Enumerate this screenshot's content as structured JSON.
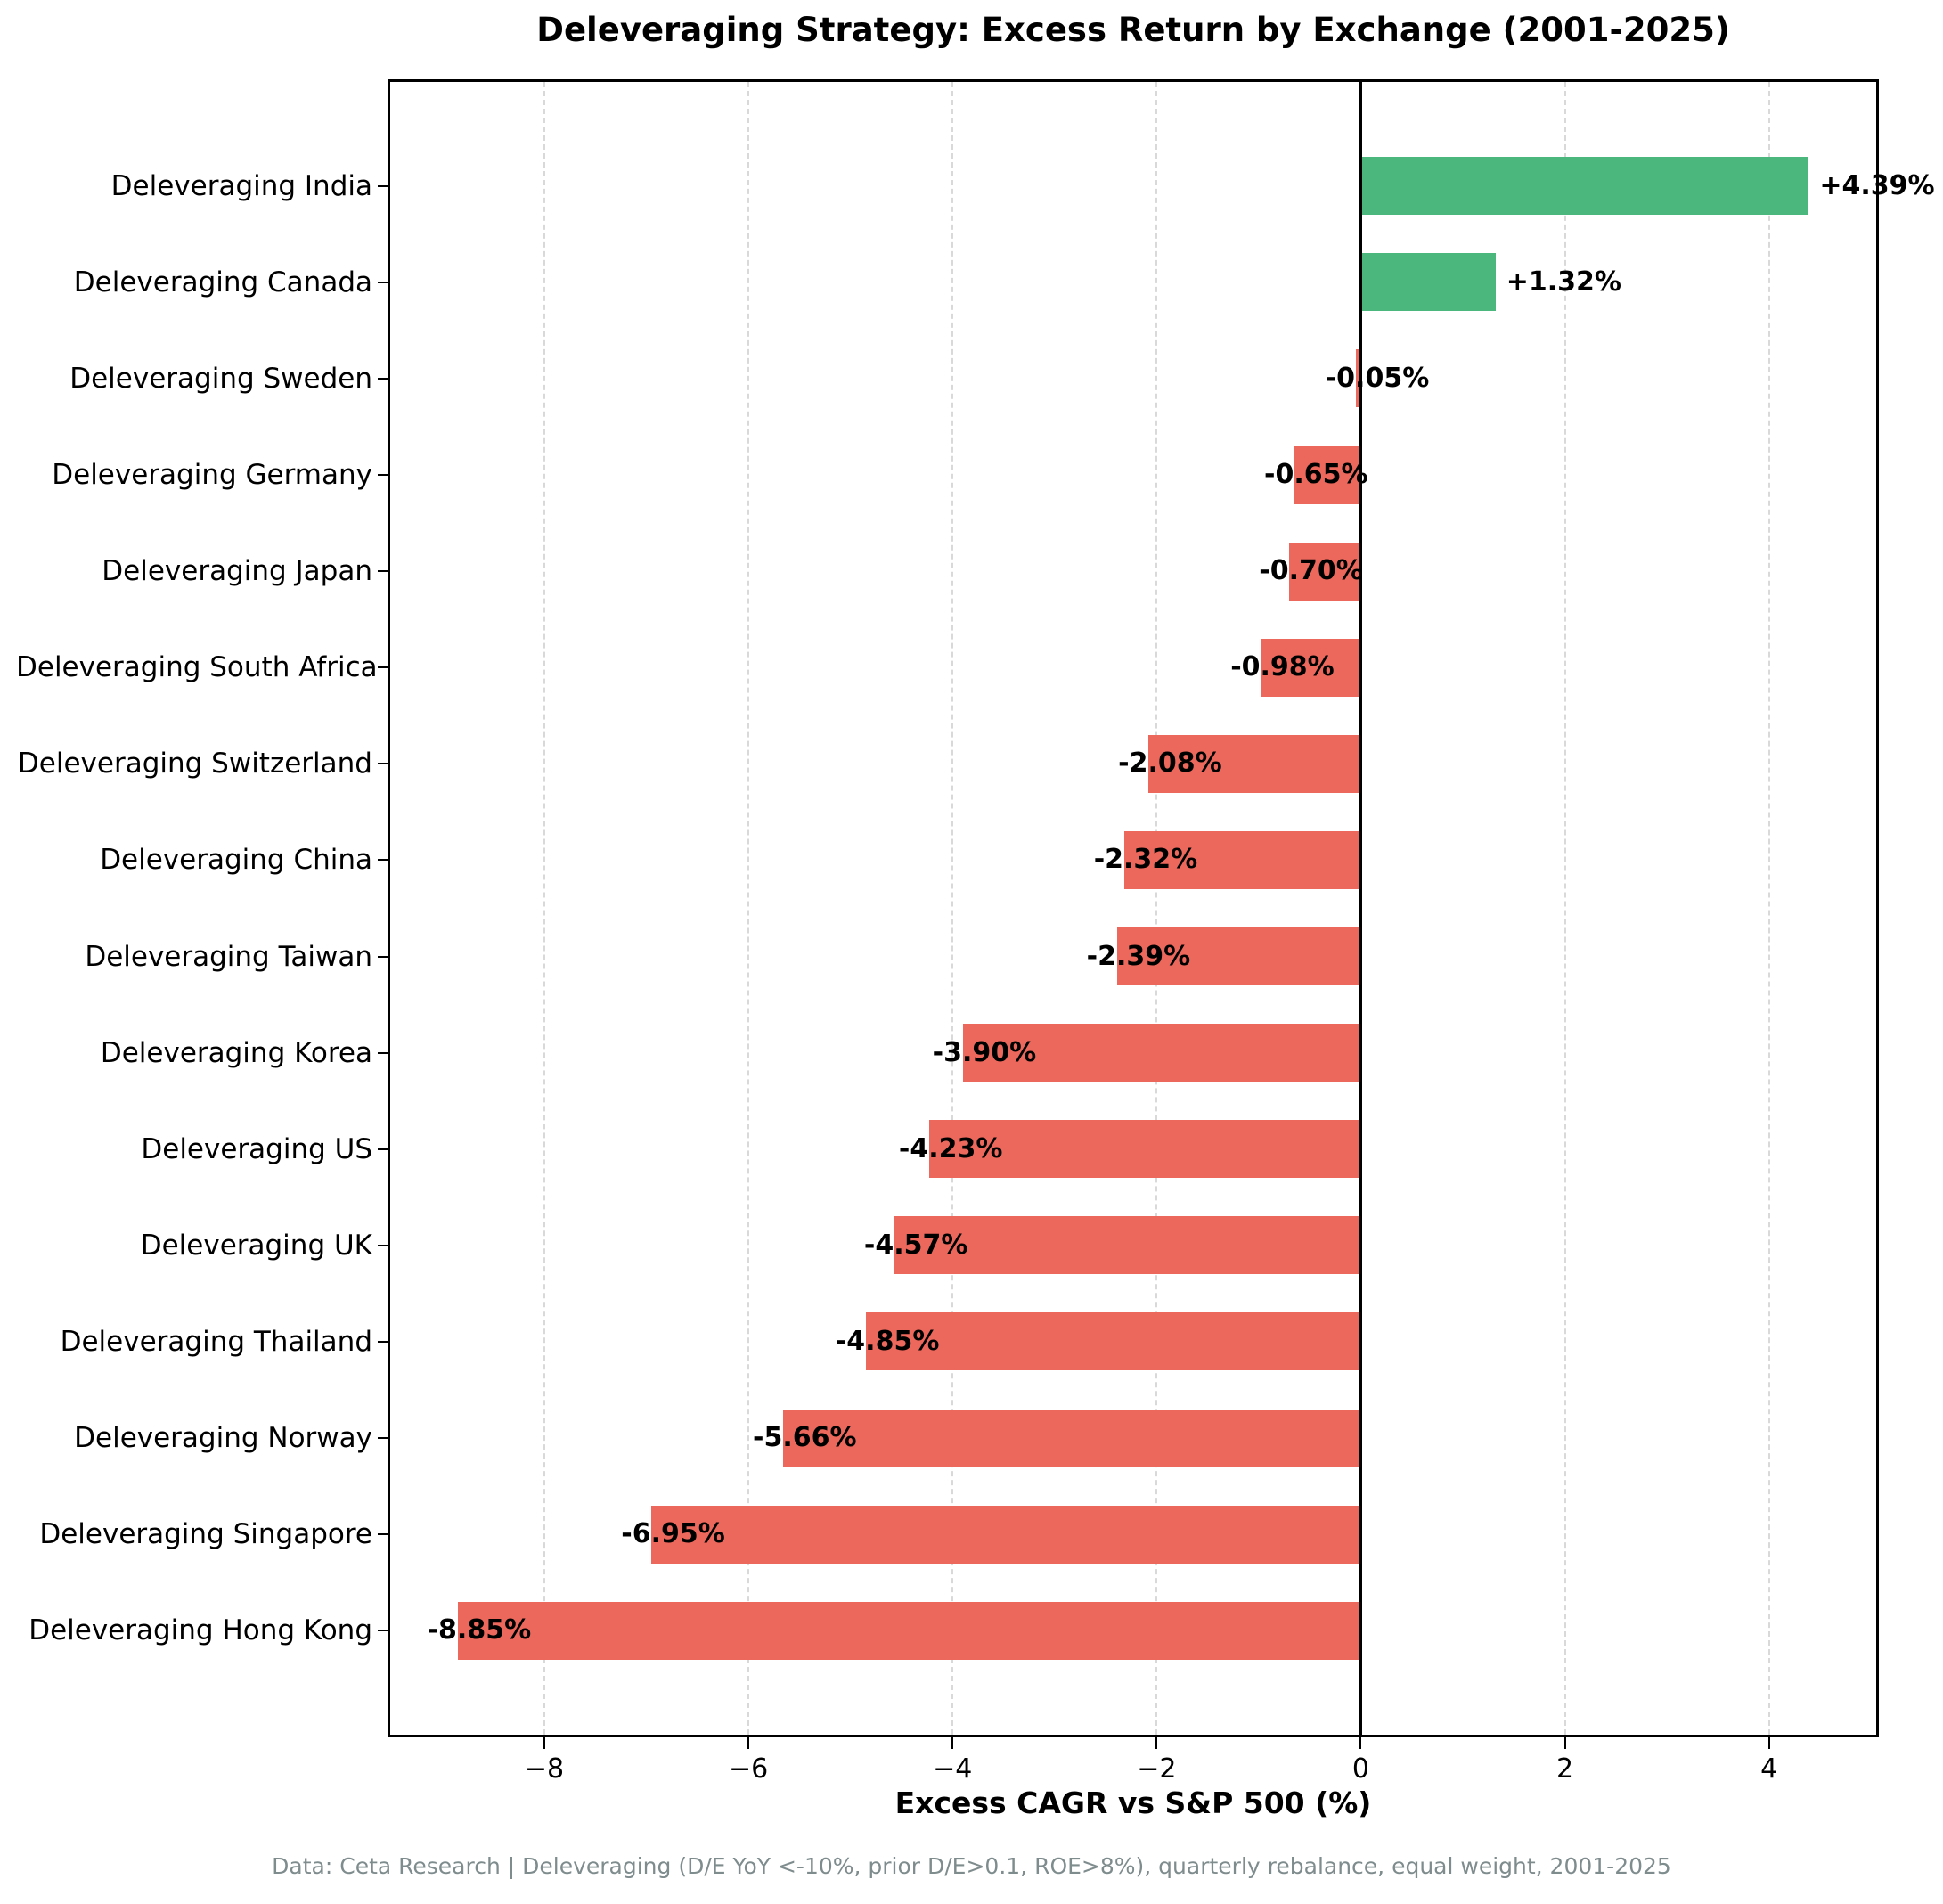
{
  "figure": {
    "title": "Deleveraging Strategy: Excess Return by Exchange (2001-2025)",
    "xlabel": "Excess CAGR vs S&P 500 (%)",
    "footer": "Data: Ceta Research | Deleveraging (D/E YoY <-10%, prior D/E>0.1, ROE>8%), quarterly rebalance, equal weight, 2001-2025"
  },
  "chart_data": {
    "type": "bar",
    "orientation": "horizontal",
    "title": "Deleveraging Strategy: Excess Return by Exchange (2001-2025)",
    "xlabel": "Excess CAGR vs S&P 500 (%)",
    "ylabel": "",
    "categories": [
      "Deleveraging India",
      "Deleveraging Canada",
      "Deleveraging Sweden",
      "Deleveraging Germany",
      "Deleveraging Japan",
      "Deleveraging South Africa",
      "Deleveraging Switzerland",
      "Deleveraging China",
      "Deleveraging Taiwan",
      "Deleveraging Korea",
      "Deleveraging US",
      "Deleveraging UK",
      "Deleveraging Thailand",
      "Deleveraging Norway",
      "Deleveraging Singapore",
      "Deleveraging Hong Kong"
    ],
    "values": [
      4.39,
      1.32,
      -0.05,
      -0.65,
      -0.7,
      -0.98,
      -2.08,
      -2.32,
      -2.39,
      -3.9,
      -4.23,
      -4.57,
      -4.85,
      -5.66,
      -6.95,
      -8.85
    ],
    "bar_labels": [
      "+4.39%",
      "+1.32%",
      "-0.05%",
      "-0.65%",
      "-0.70%",
      "-0.98%",
      "-2.08%",
      "-2.32%",
      "-2.39%",
      "-3.90%",
      "-4.23%",
      "-4.57%",
      "-4.85%",
      "-5.66%",
      "-6.95%",
      "-8.85%"
    ],
    "xlim": [
      -9.51,
      5.05
    ],
    "xticks": [
      -8,
      -6,
      -4,
      -2,
      0,
      2,
      4
    ],
    "xtick_labels": [
      "−8",
      "−6",
      "−4",
      "−2",
      "0",
      "2",
      "4"
    ],
    "grid": true,
    "legend": "none",
    "colors": {
      "positive_bar": "#4bb77c",
      "negative_bar": "#ec685c",
      "zero_line": "#000000",
      "gridline": "#d9d9d9",
      "footer_text": "#7f8c8d"
    }
  }
}
